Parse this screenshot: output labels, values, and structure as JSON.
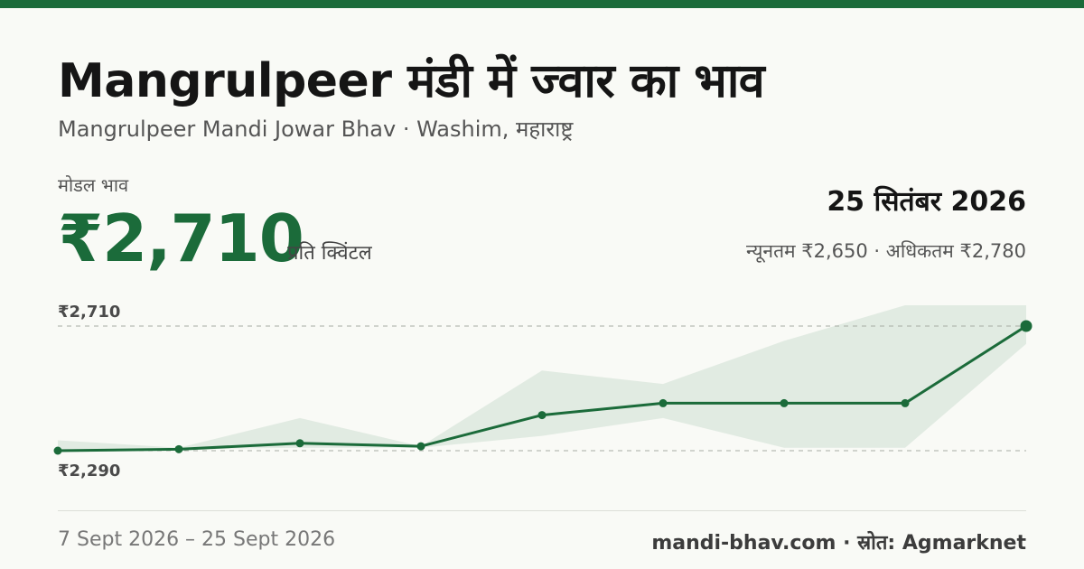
{
  "title": "Mangrulpeer मंडी में ज्वार का भाव",
  "subtitle": "Mangrulpeer Mandi Jowar Bhav · Washim, महाराष्ट्र",
  "modal_label": "मोडल भाव",
  "modal_price": "₹2,710",
  "unit": "प्रति क्विंटल",
  "date": "25 सितंबर 2026",
  "minmax": "न्यूनतम ₹2,650 · अधिकतम ₹2,780",
  "date_range": "7 Sept 2026 – 25 Sept 2026",
  "source": "mandi-bhav.com · स्रोत: Agmarknet",
  "colors": {
    "accent": "#1b6b3a",
    "band": "#dde8de"
  },
  "chart_data": {
    "type": "line",
    "y_tick_labels": [
      "₹2,710",
      "₹2,290"
    ],
    "y_reference": [
      2710,
      2290
    ],
    "ylim": [
      2290,
      2710
    ],
    "grid": false,
    "series": [
      {
        "values": [
          2290,
          2295,
          2315,
          2305,
          2410,
          2450,
          2450,
          2450,
          2710
        ]
      }
    ],
    "band": {
      "min": [
        2290,
        2295,
        2300,
        2300,
        2340,
        2400,
        2300,
        2300,
        2650
      ],
      "max": [
        2325,
        2300,
        2400,
        2305,
        2560,
        2515,
        2660,
        2780,
        2780
      ]
    }
  }
}
